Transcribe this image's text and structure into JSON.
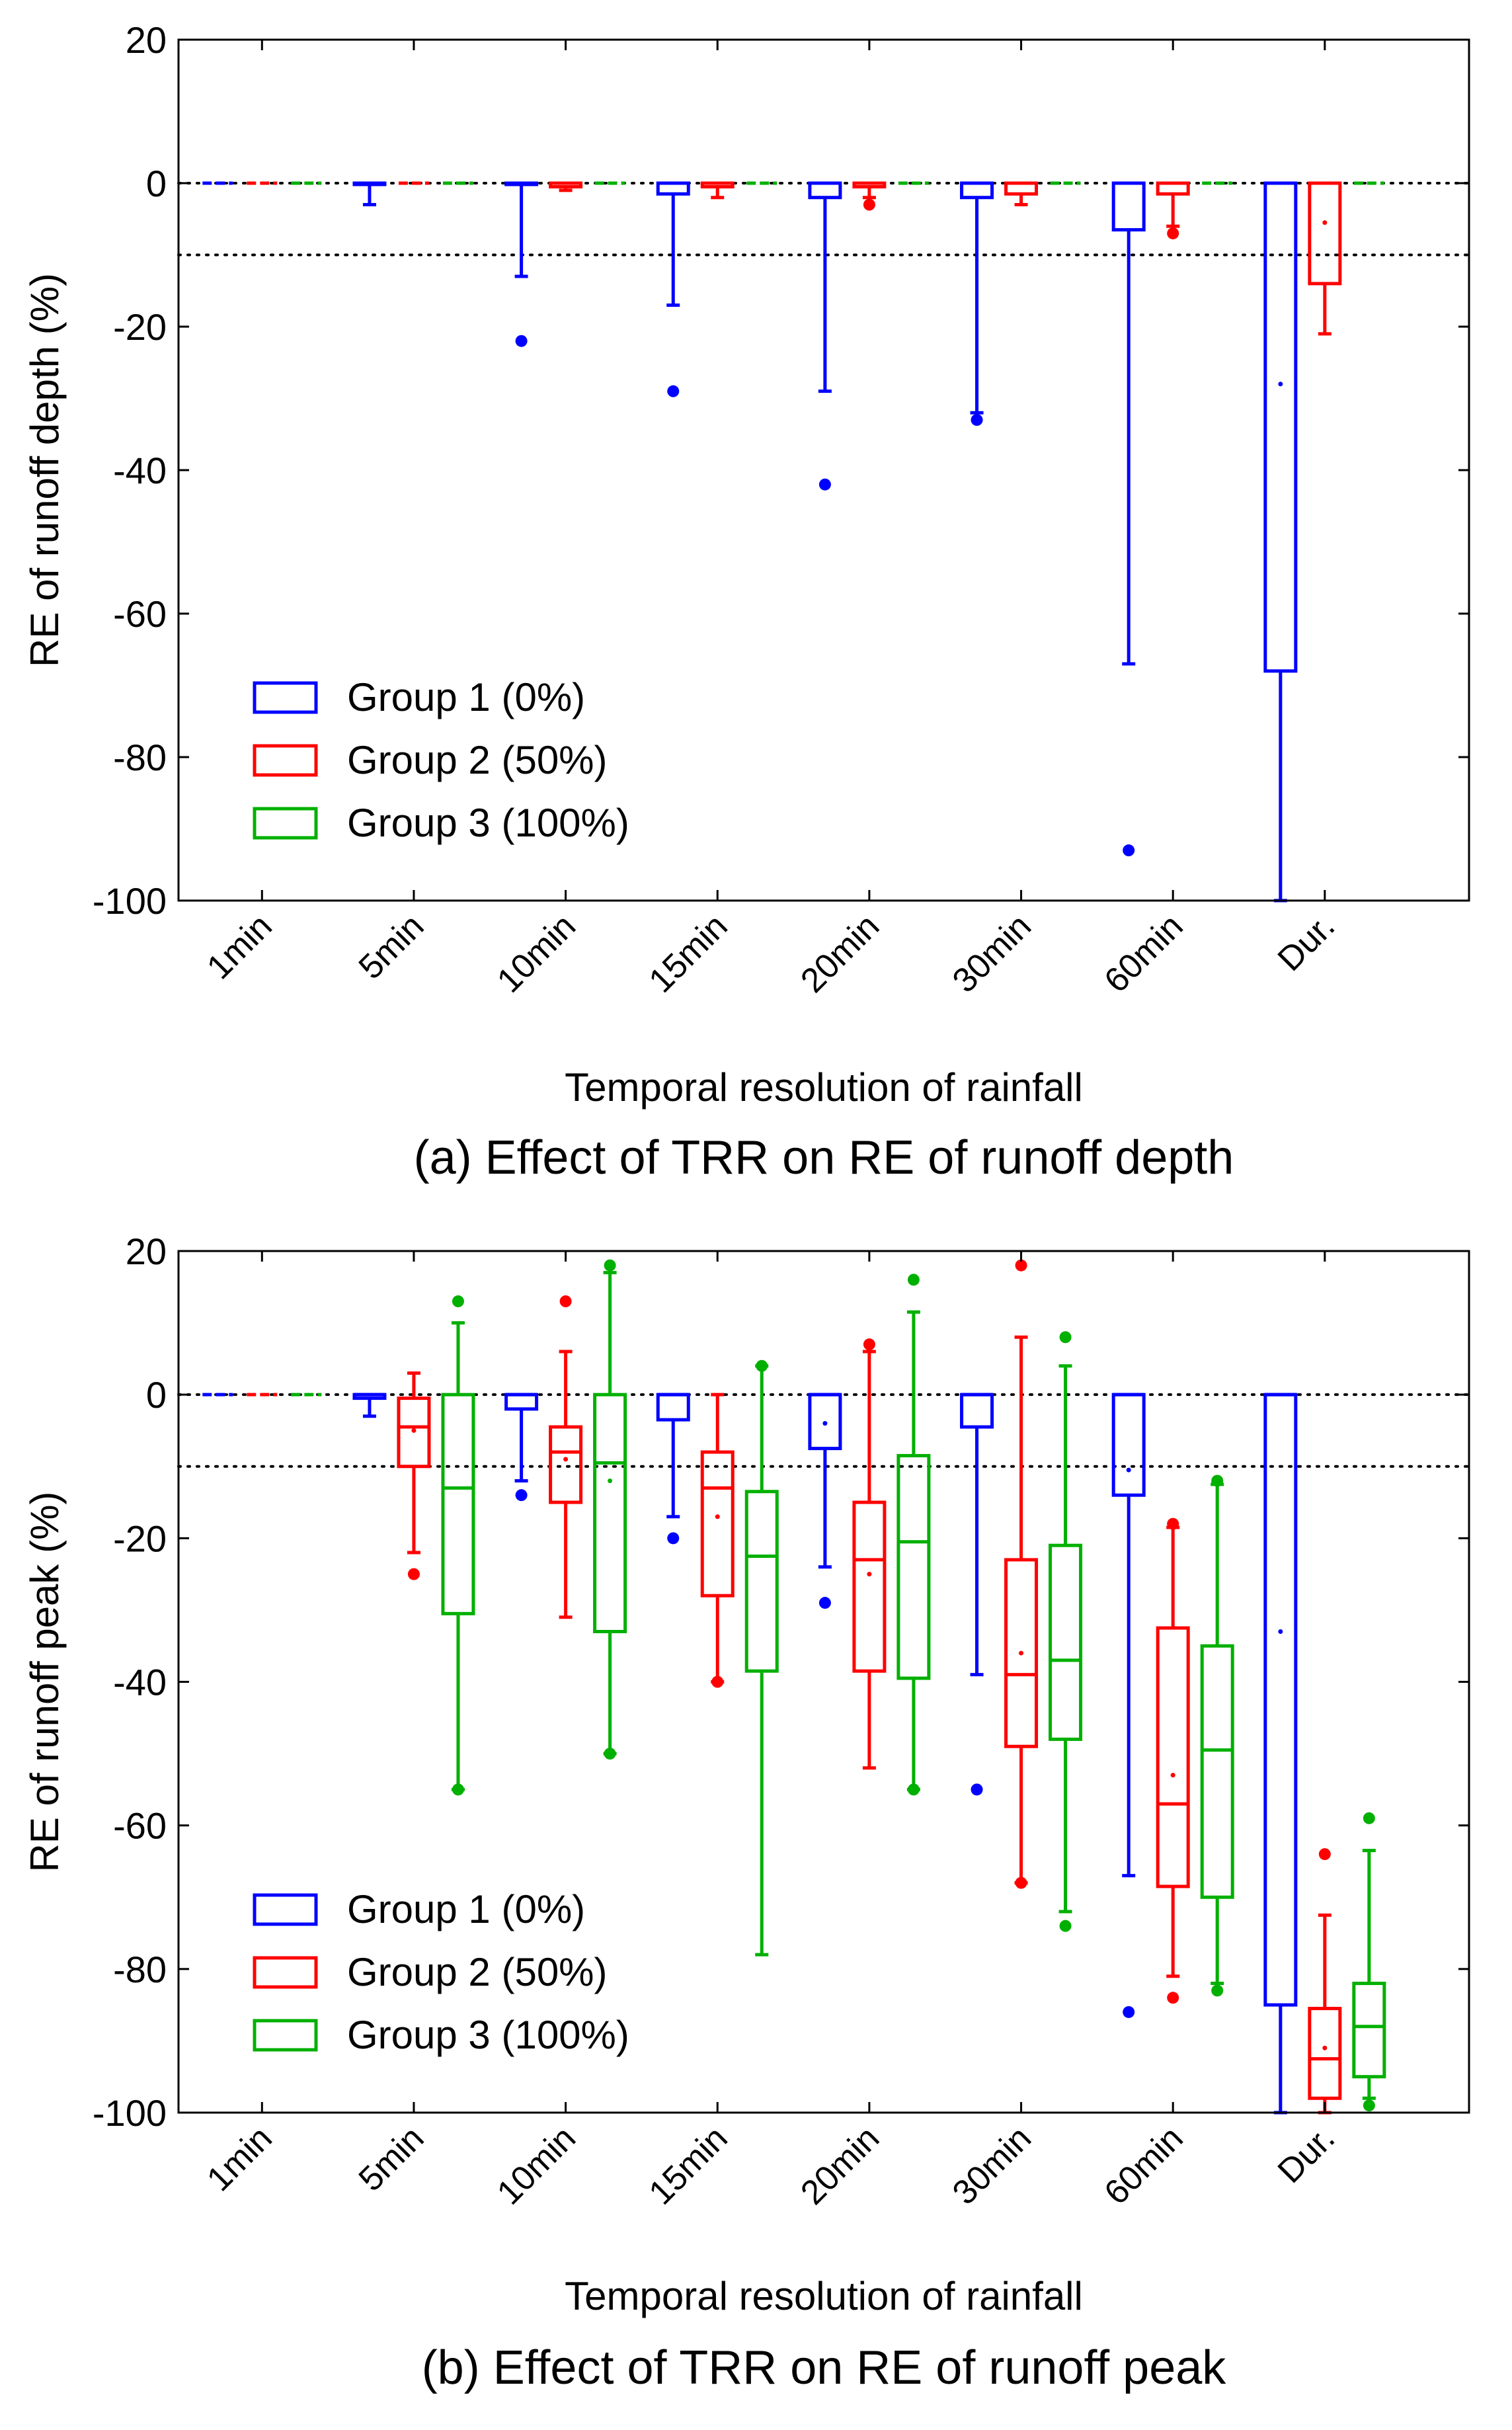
{
  "chart_data": [
    {
      "type": "box",
      "panel": "a",
      "caption": "(a) Effect of TRR on RE of runoff depth",
      "xlabel": "Temporal resolution of rainfall",
      "ylabel": "RE of runoff depth (%)",
      "ylim": [
        -100,
        20
      ],
      "yticks": [
        20,
        0,
        -20,
        -40,
        -60,
        -80,
        -100
      ],
      "ytick_labels": [
        "20",
        "0",
        "-20",
        "-40",
        "-60",
        "-80",
        "-100"
      ],
      "categories": [
        "1min",
        "5min",
        "10min",
        "15min",
        "20min",
        "30min",
        "60min",
        "Dur."
      ],
      "reference_lines": [
        0,
        -10
      ],
      "grid": false,
      "legend": {
        "placement": "lower-left",
        "entries": [
          "Group 1 (0%)",
          "Group 2 (50%)",
          "Group 3 (100%)"
        ]
      },
      "series": [
        {
          "name": "Group 1 (0%)",
          "color": "#0000ff",
          "boxes": [
            {
              "cat": 0,
              "wlo": 0,
              "q1": 0,
              "med": 0,
              "q3": 0,
              "whi": 0,
              "mean": null,
              "outliers": []
            },
            {
              "cat": 1,
              "wlo": -3,
              "q1": 0,
              "med": 0,
              "q3": 0,
              "whi": 0,
              "mean": null,
              "outliers": []
            },
            {
              "cat": 2,
              "wlo": -13,
              "q1": 0,
              "med": 0,
              "q3": 0,
              "whi": 0,
              "mean": null,
              "outliers": [
                -22
              ]
            },
            {
              "cat": 3,
              "wlo": -17,
              "q1": -1.5,
              "med": 0,
              "q3": 0,
              "whi": 0,
              "mean": null,
              "outliers": [
                -29
              ]
            },
            {
              "cat": 4,
              "wlo": -29,
              "q1": -2,
              "med": 0,
              "q3": 0,
              "whi": 0,
              "mean": null,
              "outliers": [
                -42
              ]
            },
            {
              "cat": 5,
              "wlo": -32,
              "q1": -2,
              "med": 0,
              "q3": 0,
              "whi": 0,
              "mean": null,
              "outliers": [
                -33
              ]
            },
            {
              "cat": 6,
              "wlo": -67,
              "q1": -6.5,
              "med": 0,
              "q3": 0,
              "whi": 0,
              "mean": null,
              "outliers": [
                -93
              ]
            },
            {
              "cat": 7,
              "wlo": -100,
              "q1": -68,
              "med": 0,
              "q3": 0,
              "whi": 0,
              "mean": -28,
              "outliers": []
            }
          ]
        },
        {
          "name": "Group 2 (50%)",
          "color": "#ff0000",
          "boxes": [
            {
              "cat": 0,
              "wlo": 0,
              "q1": 0,
              "med": 0,
              "q3": 0,
              "whi": 0,
              "mean": null,
              "outliers": []
            },
            {
              "cat": 1,
              "wlo": 0,
              "q1": 0,
              "med": 0,
              "q3": 0,
              "whi": 0,
              "mean": null,
              "outliers": []
            },
            {
              "cat": 2,
              "wlo": -1,
              "q1": -0.5,
              "med": 0,
              "q3": 0,
              "whi": 0,
              "mean": null,
              "outliers": []
            },
            {
              "cat": 3,
              "wlo": -2,
              "q1": -0.5,
              "med": 0,
              "q3": 0,
              "whi": 0,
              "mean": null,
              "outliers": []
            },
            {
              "cat": 4,
              "wlo": -2,
              "q1": -0.5,
              "med": 0,
              "q3": 0,
              "whi": 0,
              "mean": null,
              "outliers": [
                -3
              ]
            },
            {
              "cat": 5,
              "wlo": -3,
              "q1": -1.5,
              "med": 0,
              "q3": 0,
              "whi": 0,
              "mean": null,
              "outliers": []
            },
            {
              "cat": 6,
              "wlo": -6,
              "q1": -1.5,
              "med": 0,
              "q3": 0,
              "whi": 0,
              "mean": null,
              "outliers": [
                -7
              ]
            },
            {
              "cat": 7,
              "wlo": -21,
              "q1": -14,
              "med": 0,
              "q3": 0,
              "whi": 0,
              "mean": -5.5,
              "outliers": []
            }
          ]
        },
        {
          "name": "Group 3 (100%)",
          "color": "#00b000",
          "boxes": [
            {
              "cat": 0,
              "wlo": 0,
              "q1": 0,
              "med": 0,
              "q3": 0,
              "whi": 0,
              "mean": null,
              "outliers": []
            },
            {
              "cat": 1,
              "wlo": 0,
              "q1": 0,
              "med": 0,
              "q3": 0,
              "whi": 0,
              "mean": null,
              "outliers": []
            },
            {
              "cat": 2,
              "wlo": 0,
              "q1": 0,
              "med": 0,
              "q3": 0,
              "whi": 0,
              "mean": null,
              "outliers": []
            },
            {
              "cat": 3,
              "wlo": 0,
              "q1": 0,
              "med": 0,
              "q3": 0,
              "whi": 0,
              "mean": null,
              "outliers": []
            },
            {
              "cat": 4,
              "wlo": 0,
              "q1": 0,
              "med": 0,
              "q3": 0,
              "whi": 0,
              "mean": null,
              "outliers": []
            },
            {
              "cat": 5,
              "wlo": 0,
              "q1": 0,
              "med": 0,
              "q3": 0,
              "whi": 0,
              "mean": null,
              "outliers": []
            },
            {
              "cat": 6,
              "wlo": 0,
              "q1": 0,
              "med": 0,
              "q3": 0,
              "whi": 0,
              "mean": null,
              "outliers": []
            },
            {
              "cat": 7,
              "wlo": 0,
              "q1": 0,
              "med": 0,
              "q3": 0,
              "whi": 0,
              "mean": null,
              "outliers": []
            }
          ]
        }
      ]
    },
    {
      "type": "box",
      "panel": "b",
      "caption": "(b) Effect of TRR on RE of runoff peak",
      "xlabel": "Temporal resolution of rainfall",
      "ylabel": "RE of runoff peak (%)",
      "ylim": [
        -100,
        20
      ],
      "yticks": [
        20,
        0,
        -20,
        -40,
        -60,
        -80,
        -100
      ],
      "ytick_labels": [
        "20",
        "0",
        "-20",
        "-40",
        "-60",
        "-80",
        "-100"
      ],
      "categories": [
        "1min",
        "5min",
        "10min",
        "15min",
        "20min",
        "30min",
        "60min",
        "Dur."
      ],
      "reference_lines": [
        0,
        -10
      ],
      "grid": false,
      "legend": {
        "placement": "lower-left",
        "entries": [
          "Group 1 (0%)",
          "Group 2 (50%)",
          "Group 3 (100%)"
        ]
      },
      "series": [
        {
          "name": "Group 1 (0%)",
          "color": "#0000ff",
          "boxes": [
            {
              "cat": 0,
              "wlo": 0,
              "q1": 0,
              "med": 0,
              "q3": 0,
              "whi": 0,
              "mean": null,
              "outliers": []
            },
            {
              "cat": 1,
              "wlo": -3,
              "q1": -0.5,
              "med": 0,
              "q3": 0,
              "whi": 0,
              "mean": null,
              "outliers": []
            },
            {
              "cat": 2,
              "wlo": -12,
              "q1": -2,
              "med": 0,
              "q3": 0,
              "whi": 0,
              "mean": null,
              "outliers": [
                -14
              ]
            },
            {
              "cat": 3,
              "wlo": -17,
              "q1": -3.5,
              "med": 0,
              "q3": 0,
              "whi": 0,
              "mean": null,
              "outliers": [
                -20
              ]
            },
            {
              "cat": 4,
              "wlo": -24,
              "q1": -7.5,
              "med": 0,
              "q3": 0,
              "whi": 0,
              "mean": -4,
              "outliers": [
                -29
              ]
            },
            {
              "cat": 5,
              "wlo": -39,
              "q1": -4.5,
              "med": 0,
              "q3": 0,
              "whi": 0,
              "mean": null,
              "outliers": [
                -55
              ]
            },
            {
              "cat": 6,
              "wlo": -67,
              "q1": -14,
              "med": 0,
              "q3": 0,
              "whi": 0,
              "mean": -10.5,
              "outliers": [
                -86
              ]
            },
            {
              "cat": 7,
              "wlo": -100,
              "q1": -85,
              "med": 0,
              "q3": 0,
              "whi": 0,
              "mean": -33,
              "outliers": []
            }
          ]
        },
        {
          "name": "Group 2 (50%)",
          "color": "#ff0000",
          "boxes": [
            {
              "cat": 0,
              "wlo": 0,
              "q1": 0,
              "med": 0,
              "q3": 0,
              "whi": 0,
              "mean": null,
              "outliers": []
            },
            {
              "cat": 1,
              "wlo": -22,
              "q1": -10,
              "med": -4.5,
              "q3": -0.5,
              "whi": 3,
              "mean": -5,
              "outliers": [
                -25
              ]
            },
            {
              "cat": 2,
              "wlo": -31,
              "q1": -15,
              "med": -8,
              "q3": -4.5,
              "whi": 6,
              "mean": -9,
              "outliers": [
                13
              ]
            },
            {
              "cat": 3,
              "wlo": -40,
              "q1": -28,
              "med": -13,
              "q3": -8,
              "whi": 0,
              "mean": -17,
              "outliers": [
                -40
              ]
            },
            {
              "cat": 4,
              "wlo": -52,
              "q1": -38.5,
              "med": -23,
              "q3": -15,
              "whi": 6,
              "mean": -25,
              "outliers": [
                7
              ]
            },
            {
              "cat": 5,
              "wlo": -68,
              "q1": -49,
              "med": -39,
              "q3": -23,
              "whi": 8,
              "mean": -36,
              "outliers": [
                18,
                -68
              ]
            },
            {
              "cat": 6,
              "wlo": -81,
              "q1": -68.5,
              "med": -57,
              "q3": -32.5,
              "whi": -18.5,
              "mean": -53,
              "outliers": [
                -18,
                -84
              ]
            },
            {
              "cat": 7,
              "wlo": -100,
              "q1": -98,
              "med": -92.5,
              "q3": -85.5,
              "whi": -72.5,
              "mean": -91,
              "outliers": [
                -64
              ]
            }
          ]
        },
        {
          "name": "Group 3 (100%)",
          "color": "#00b000",
          "boxes": [
            {
              "cat": 0,
              "wlo": 0,
              "q1": 0,
              "med": 0,
              "q3": 0,
              "whi": 0,
              "mean": null,
              "outliers": []
            },
            {
              "cat": 1,
              "wlo": -55,
              "q1": -30.5,
              "med": -13,
              "q3": 0,
              "whi": 10,
              "mean": null,
              "outliers": [
                13,
                -55
              ]
            },
            {
              "cat": 2,
              "wlo": -50,
              "q1": -33,
              "med": -9.5,
              "q3": 0,
              "whi": 17,
              "mean": -12,
              "outliers": [
                18,
                -50
              ]
            },
            {
              "cat": 3,
              "wlo": -78,
              "q1": -38.5,
              "med": -22.5,
              "q3": -13.5,
              "whi": 4,
              "mean": null,
              "outliers": [
                4
              ]
            },
            {
              "cat": 4,
              "wlo": -55,
              "q1": -39.5,
              "med": -20.5,
              "q3": -8.5,
              "whi": 11.5,
              "mean": null,
              "outliers": [
                16,
                -55
              ]
            },
            {
              "cat": 5,
              "wlo": -72,
              "q1": -48,
              "med": -37,
              "q3": -21,
              "whi": 4,
              "mean": null,
              "outliers": [
                8,
                -74
              ]
            },
            {
              "cat": 6,
              "wlo": -82,
              "q1": -70,
              "med": -49.5,
              "q3": -35,
              "whi": -12.5,
              "mean": null,
              "outliers": [
                -12,
                -83
              ]
            },
            {
              "cat": 7,
              "wlo": -98,
              "q1": -95,
              "med": -88,
              "q3": -82,
              "whi": -63.5,
              "mean": null,
              "outliers": [
                -59,
                -99
              ]
            }
          ]
        }
      ]
    }
  ]
}
